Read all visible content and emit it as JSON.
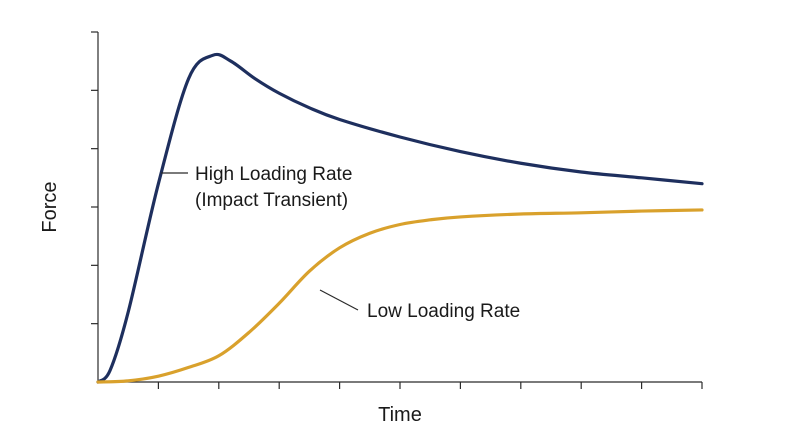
{
  "chart_data": {
    "type": "line",
    "title": "",
    "xlabel": "Time",
    "ylabel": "Force",
    "xlim": [
      0,
      10
    ],
    "ylim": [
      0,
      6
    ],
    "x_tick_count": 10,
    "y_tick_count": 6,
    "show_tick_labels": false,
    "grid": false,
    "legend": "none",
    "series": [
      {
        "name": "High Loading Rate",
        "color": "#1e2f5e",
        "x": [
          0,
          0.2,
          0.5,
          1.0,
          1.5,
          1.9,
          2.2,
          2.6,
          3.0,
          3.5,
          4.0,
          5.0,
          6.0,
          7.0,
          8.0,
          9.0,
          10.0
        ],
        "y": [
          0,
          0.2,
          1.2,
          3.4,
          5.2,
          5.6,
          5.5,
          5.2,
          4.95,
          4.7,
          4.5,
          4.2,
          3.95,
          3.75,
          3.6,
          3.5,
          3.4
        ]
      },
      {
        "name": "Low Loading Rate",
        "color": "#d9a12c",
        "x": [
          0,
          0.5,
          1.0,
          1.5,
          2.0,
          2.5,
          3.0,
          3.5,
          4.0,
          4.5,
          5.0,
          5.5,
          6.0,
          7.0,
          8.0,
          9.0,
          10.0
        ],
        "y": [
          0,
          0.02,
          0.1,
          0.25,
          0.45,
          0.85,
          1.35,
          1.9,
          2.3,
          2.55,
          2.7,
          2.78,
          2.83,
          2.88,
          2.9,
          2.93,
          2.95
        ]
      }
    ],
    "annotations": [
      {
        "lines": [
          "High Loading Rate",
          "(Impact Transient)"
        ]
      },
      {
        "lines": [
          "Low Loading Rate"
        ]
      }
    ]
  }
}
